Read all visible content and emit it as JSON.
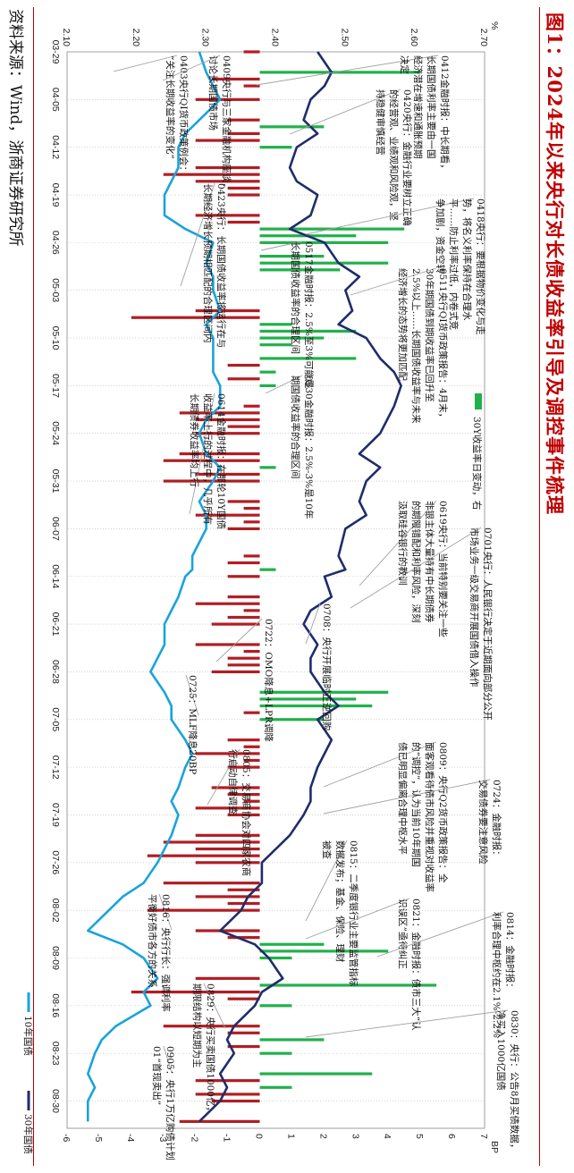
{
  "figure": {
    "title": "图1：2024年以来央行对长债收益率引导及调控事件梳理",
    "source": "资料来源：Wind，浙商证券研究所"
  },
  "chart_data": {
    "type": "bar+line",
    "left_axis": {
      "unit": "%",
      "min": 2.1,
      "max": 2.7,
      "ticks": [
        "2.10",
        "2.20",
        "2.30",
        "2.40",
        "2.50",
        "2.60",
        "2.70"
      ]
    },
    "right_axis": {
      "unit": "BP",
      "min": -6,
      "max": 7,
      "ticks": [
        "-6",
        "-5",
        "-4",
        "-3",
        "-2",
        "-1",
        "0",
        "1",
        "2",
        "3",
        "4",
        "5",
        "6",
        "7"
      ]
    },
    "x_ticks": [
      "03-29",
      "04-05",
      "04-12",
      "04-19",
      "04-26",
      "05-03",
      "05-10",
      "05-17",
      "05-24",
      "05-31",
      "06-07",
      "06-14",
      "06-21",
      "06-28",
      "07-05",
      "07-12",
      "07-19",
      "07-26",
      "08-02",
      "08-09",
      "08-16",
      "08-23",
      "08-30"
    ],
    "legend": [
      {
        "name": "10年国债",
        "type": "line",
        "color": "#1aa3dc"
      },
      {
        "name": "30年国债",
        "type": "line",
        "color": "#1f2d6b"
      },
      {
        "name": "30Y收益率日变动，右",
        "type": "bar",
        "color": "#22b04b"
      }
    ],
    "bar_colors": {
      "up": "#22b04b",
      "down": "#b01e23"
    },
    "annotation_line_color": "#a0a0a0",
    "series_10y": [
      {
        "x": "03-29",
        "y": 2.29
      },
      {
        "x": "04-01",
        "y": 2.3
      },
      {
        "x": "04-03",
        "y": 2.31
      },
      {
        "x": "04-05",
        "y": 2.32
      },
      {
        "x": "04-08",
        "y": 2.29
      },
      {
        "x": "04-10",
        "y": 2.27
      },
      {
        "x": "04-12",
        "y": 2.26
      },
      {
        "x": "04-15",
        "y": 2.26
      },
      {
        "x": "04-17",
        "y": 2.25
      },
      {
        "x": "04-19",
        "y": 2.24
      },
      {
        "x": "04-22",
        "y": 2.24
      },
      {
        "x": "04-24",
        "y": 2.27
      },
      {
        "x": "04-26",
        "y": 2.31
      },
      {
        "x": "04-29",
        "y": 2.3
      },
      {
        "x": "05-01",
        "y": 2.31
      },
      {
        "x": "05-03",
        "y": 2.31
      },
      {
        "x": "05-06",
        "y": 2.32
      },
      {
        "x": "05-08",
        "y": 2.3
      },
      {
        "x": "05-10",
        "y": 2.31
      },
      {
        "x": "05-13",
        "y": 2.31
      },
      {
        "x": "05-15",
        "y": 2.31
      },
      {
        "x": "05-17",
        "y": 2.32
      },
      {
        "x": "05-20",
        "y": 2.32
      },
      {
        "x": "05-22",
        "y": 2.3
      },
      {
        "x": "05-24",
        "y": 2.29
      },
      {
        "x": "05-27",
        "y": 2.3
      },
      {
        "x": "05-29",
        "y": 2.32
      },
      {
        "x": "05-31",
        "y": 2.31
      },
      {
        "x": "06-03",
        "y": 2.29
      },
      {
        "x": "06-05",
        "y": 2.3
      },
      {
        "x": "06-07",
        "y": 2.3
      },
      {
        "x": "06-11",
        "y": 2.28
      },
      {
        "x": "06-13",
        "y": 2.28
      },
      {
        "x": "06-14",
        "y": 2.27
      },
      {
        "x": "06-17",
        "y": 2.26
      },
      {
        "x": "06-19",
        "y": 2.25
      },
      {
        "x": "06-21",
        "y": 2.24
      },
      {
        "x": "06-24",
        "y": 2.24
      },
      {
        "x": "06-26",
        "y": 2.23
      },
      {
        "x": "06-28",
        "y": 2.22
      },
      {
        "x": "07-01",
        "y": 2.24
      },
      {
        "x": "07-03",
        "y": 2.25
      },
      {
        "x": "07-05",
        "y": 2.25
      },
      {
        "x": "07-08",
        "y": 2.27
      },
      {
        "x": "07-10",
        "y": 2.28
      },
      {
        "x": "07-12",
        "y": 2.27
      },
      {
        "x": "07-15",
        "y": 2.26
      },
      {
        "x": "07-17",
        "y": 2.25
      },
      {
        "x": "07-19",
        "y": 2.26
      },
      {
        "x": "07-22",
        "y": 2.25
      },
      {
        "x": "07-24",
        "y": 2.24
      },
      {
        "x": "07-26",
        "y": 2.23
      },
      {
        "x": "07-29",
        "y": 2.21
      },
      {
        "x": "07-31",
        "y": 2.18
      },
      {
        "x": "08-02",
        "y": 2.16
      },
      {
        "x": "08-05",
        "y": 2.13
      },
      {
        "x": "08-07",
        "y": 2.18
      },
      {
        "x": "08-09",
        "y": 2.21
      },
      {
        "x": "08-12",
        "y": 2.23
      },
      {
        "x": "08-14",
        "y": 2.21
      },
      {
        "x": "08-16",
        "y": 2.22
      },
      {
        "x": "08-19",
        "y": 2.17
      },
      {
        "x": "08-21",
        "y": 2.15
      },
      {
        "x": "08-23",
        "y": 2.14
      },
      {
        "x": "08-26",
        "y": 2.13
      },
      {
        "x": "08-28",
        "y": 2.14
      },
      {
        "x": "08-30",
        "y": 2.13
      },
      {
        "x": "09-02",
        "y": 2.13
      }
    ],
    "series_30y": [
      {
        "x": "03-29",
        "y": 2.46
      },
      {
        "x": "04-01",
        "y": 2.48
      },
      {
        "x": "04-03",
        "y": 2.47
      },
      {
        "x": "04-05",
        "y": 2.45
      },
      {
        "x": "04-08",
        "y": 2.44
      },
      {
        "x": "04-10",
        "y": 2.46
      },
      {
        "x": "04-12",
        "y": 2.43
      },
      {
        "x": "04-15",
        "y": 2.42
      },
      {
        "x": "04-17",
        "y": 2.43
      },
      {
        "x": "04-19",
        "y": 2.46
      },
      {
        "x": "04-22",
        "y": 2.45
      },
      {
        "x": "04-24",
        "y": 2.42
      },
      {
        "x": "04-26",
        "y": 2.47
      },
      {
        "x": "04-29",
        "y": 2.49
      },
      {
        "x": "05-01",
        "y": 2.52
      },
      {
        "x": "05-03",
        "y": 2.5
      },
      {
        "x": "05-06",
        "y": 2.51
      },
      {
        "x": "05-08",
        "y": 2.49
      },
      {
        "x": "05-10",
        "y": 2.53
      },
      {
        "x": "05-13",
        "y": 2.55
      },
      {
        "x": "05-15",
        "y": 2.57
      },
      {
        "x": "05-17",
        "y": 2.58
      },
      {
        "x": "05-20",
        "y": 2.57
      },
      {
        "x": "05-22",
        "y": 2.56
      },
      {
        "x": "05-24",
        "y": 2.55
      },
      {
        "x": "05-27",
        "y": 2.52
      },
      {
        "x": "05-29",
        "y": 2.55
      },
      {
        "x": "05-31",
        "y": 2.53
      },
      {
        "x": "06-03",
        "y": 2.52
      },
      {
        "x": "06-05",
        "y": 2.53
      },
      {
        "x": "06-07",
        "y": 2.5
      },
      {
        "x": "06-11",
        "y": 2.49
      },
      {
        "x": "06-13",
        "y": 2.5
      },
      {
        "x": "06-14",
        "y": 2.47
      },
      {
        "x": "06-17",
        "y": 2.48
      },
      {
        "x": "06-19",
        "y": 2.45
      },
      {
        "x": "06-21",
        "y": 2.44
      },
      {
        "x": "06-24",
        "y": 2.46
      },
      {
        "x": "06-26",
        "y": 2.45
      },
      {
        "x": "06-28",
        "y": 2.45
      },
      {
        "x": "07-01",
        "y": 2.47
      },
      {
        "x": "07-03",
        "y": 2.49
      },
      {
        "x": "07-05",
        "y": 2.46
      },
      {
        "x": "07-08",
        "y": 2.48
      },
      {
        "x": "07-10",
        "y": 2.47
      },
      {
        "x": "07-12",
        "y": 2.46
      },
      {
        "x": "07-15",
        "y": 2.45
      },
      {
        "x": "07-17",
        "y": 2.45
      },
      {
        "x": "07-19",
        "y": 2.44
      },
      {
        "x": "07-22",
        "y": 2.42
      },
      {
        "x": "07-24",
        "y": 2.4
      },
      {
        "x": "07-26",
        "y": 2.38
      },
      {
        "x": "07-29",
        "y": 2.38
      },
      {
        "x": "07-31",
        "y": 2.36
      },
      {
        "x": "08-02",
        "y": 2.35
      },
      {
        "x": "08-05",
        "y": 2.32
      },
      {
        "x": "08-07",
        "y": 2.37
      },
      {
        "x": "08-09",
        "y": 2.39
      },
      {
        "x": "08-12",
        "y": 2.41
      },
      {
        "x": "08-14",
        "y": 2.38
      },
      {
        "x": "08-16",
        "y": 2.37
      },
      {
        "x": "08-19",
        "y": 2.34
      },
      {
        "x": "08-21",
        "y": 2.33
      },
      {
        "x": "08-23",
        "y": 2.34
      },
      {
        "x": "08-26",
        "y": 2.32
      },
      {
        "x": "08-28",
        "y": 2.33
      },
      {
        "x": "08-30",
        "y": 2.32
      },
      {
        "x": "09-02",
        "y": 2.29
      }
    ],
    "bars_30y_daily_change_bp": [
      {
        "x": "03-29",
        "v": -0.5
      },
      {
        "x": "04-01",
        "v": 5.0
      },
      {
        "x": "04-02",
        "v": -1.5
      },
      {
        "x": "04-03",
        "v": -0.5
      },
      {
        "x": "04-05",
        "v": -2.0
      },
      {
        "x": "04-08",
        "v": -1.0
      },
      {
        "x": "04-09",
        "v": 2.0
      },
      {
        "x": "04-10",
        "v": -1.0
      },
      {
        "x": "04-11",
        "v": -2.0
      },
      {
        "x": "04-12",
        "v": 1.0
      },
      {
        "x": "04-15",
        "v": -2.0
      },
      {
        "x": "04-16",
        "v": -3.0
      },
      {
        "x": "04-17",
        "v": -2.0
      },
      {
        "x": "04-18",
        "v": -1.0
      },
      {
        "x": "04-19",
        "v": -1.0
      },
      {
        "x": "04-22",
        "v": -2.0
      },
      {
        "x": "04-23",
        "v": -1.0
      },
      {
        "x": "04-24",
        "v": 4.5
      },
      {
        "x": "04-25",
        "v": 3.0
      },
      {
        "x": "04-26",
        "v": 4.0
      },
      {
        "x": "04-28",
        "v": 2.0
      },
      {
        "x": "04-29",
        "v": 4.0
      },
      {
        "x": "04-30",
        "v": 2.5
      },
      {
        "x": "05-06",
        "v": -2.0
      },
      {
        "x": "05-07",
        "v": -4.0
      },
      {
        "x": "05-08",
        "v": 1.0
      },
      {
        "x": "05-09",
        "v": 3.0
      },
      {
        "x": "05-10",
        "v": 2.0
      },
      {
        "x": "05-11",
        "v": 1.0
      },
      {
        "x": "05-13",
        "v": 3.0
      },
      {
        "x": "05-14",
        "v": -1.0
      },
      {
        "x": "05-15",
        "v": 0.5
      },
      {
        "x": "05-16",
        "v": -1.0
      },
      {
        "x": "05-17",
        "v": 0.5
      },
      {
        "x": "05-20",
        "v": -0.5
      },
      {
        "x": "05-21",
        "v": -2.5
      },
      {
        "x": "05-22",
        "v": -2.0
      },
      {
        "x": "05-23",
        "v": -1.0
      },
      {
        "x": "05-24",
        "v": -2.0
      },
      {
        "x": "05-27",
        "v": -2.5
      },
      {
        "x": "05-28",
        "v": -3.0
      },
      {
        "x": "05-29",
        "v": 0.5
      },
      {
        "x": "05-30",
        "v": -2.0
      },
      {
        "x": "05-31",
        "v": -3.0
      },
      {
        "x": "06-03",
        "v": -1.0
      },
      {
        "x": "06-04",
        "v": -0.5
      },
      {
        "x": "06-05",
        "v": -2.0
      },
      {
        "x": "06-06",
        "v": -0.5
      },
      {
        "x": "06-07",
        "v": -1.0
      },
      {
        "x": "06-11",
        "v": -0.5
      },
      {
        "x": "06-12",
        "v": -1.0
      },
      {
        "x": "06-13",
        "v": 0.5
      },
      {
        "x": "06-14",
        "v": -1.0
      },
      {
        "x": "06-17",
        "v": -1.0
      },
      {
        "x": "06-18",
        "v": -2.0
      },
      {
        "x": "06-19",
        "v": -0.5
      },
      {
        "x": "06-20",
        "v": -1.0
      },
      {
        "x": "06-21",
        "v": -1.5
      },
      {
        "x": "06-24",
        "v": -2.0
      },
      {
        "x": "06-25",
        "v": -0.5
      },
      {
        "x": "06-26",
        "v": -1.0
      },
      {
        "x": "06-27",
        "v": -1.0
      },
      {
        "x": "06-28",
        "v": -1.5
      },
      {
        "x": "07-01",
        "v": 4.0
      },
      {
        "x": "07-02",
        "v": 3.0
      },
      {
        "x": "07-03",
        "v": 3.5
      },
      {
        "x": "07-04",
        "v": -0.5
      },
      {
        "x": "07-05",
        "v": 2.0
      },
      {
        "x": "07-08",
        "v": -1.0
      },
      {
        "x": "07-09",
        "v": -0.5
      },
      {
        "x": "07-10",
        "v": -2.0
      },
      {
        "x": "07-11",
        "v": -0.5
      },
      {
        "x": "07-12",
        "v": -1.0
      },
      {
        "x": "07-15",
        "v": -1.5
      },
      {
        "x": "07-16",
        "v": -1.0
      },
      {
        "x": "07-17",
        "v": -0.5
      },
      {
        "x": "07-18",
        "v": -2.0
      },
      {
        "x": "07-19",
        "v": -1.0
      },
      {
        "x": "07-22",
        "v": -2.0
      },
      {
        "x": "07-23",
        "v": -3.0
      },
      {
        "x": "07-24",
        "v": -2.0
      },
      {
        "x": "07-25",
        "v": -3.5
      },
      {
        "x": "07-26",
        "v": -2.0
      },
      {
        "x": "07-29",
        "v": -3.0
      },
      {
        "x": "07-30",
        "v": -1.0
      },
      {
        "x": "07-31",
        "v": -2.0
      },
      {
        "x": "08-01",
        "v": -1.0
      },
      {
        "x": "08-02",
        "v": -3.5
      },
      {
        "x": "08-05",
        "v": -2.0
      },
      {
        "x": "08-06",
        "v": -1.0
      },
      {
        "x": "08-07",
        "v": 2.0
      },
      {
        "x": "08-08",
        "v": 4.0
      },
      {
        "x": "08-09",
        "v": 1.0
      },
      {
        "x": "08-12",
        "v": -2.0
      },
      {
        "x": "08-13",
        "v": 5.5
      },
      {
        "x": "08-14",
        "v": -4.0
      },
      {
        "x": "08-15",
        "v": -1.0
      },
      {
        "x": "08-16",
        "v": 1.0
      },
      {
        "x": "08-19",
        "v": -3.0
      },
      {
        "x": "08-20",
        "v": -1.0
      },
      {
        "x": "08-21",
        "v": 2.0
      },
      {
        "x": "08-22",
        "v": -1.0
      },
      {
        "x": "08-23",
        "v": 1.0
      },
      {
        "x": "08-26",
        "v": 3.5
      },
      {
        "x": "08-27",
        "v": -2.0
      },
      {
        "x": "08-28",
        "v": 1.0
      },
      {
        "x": "08-29",
        "v": -2.0
      },
      {
        "x": "08-30",
        "v": -1.5
      },
      {
        "x": "09-02",
        "v": -2.5
      }
    ],
    "annotations": [
      {
        "lines": [
          "0412金融时报：中长期看，",
          "长期国债利率主要由一国",
          "经济潜在增速和通胀预期",
          "决定"
        ]
      },
      {
        "lines": [
          "0420央行：金融行业要树立正确",
          "的经营观、业绩观和风险观，坚",
          "持稳健审慎经营"
        ]
      },
      {
        "lines": [
          "0403央行QI货币政策例会：",
          "“关注长期收益率的变化”"
        ]
      },
      {
        "lines": [
          "0409央行与三家金融机构座谈，",
          "讨论长期国债市场"
        ]
      },
      {
        "lines": [
          "0423央行：长期国债收益率将运行在与",
          "长期经济增长预期相匹配的合理区间内"
        ]
      },
      {
        "lines": [
          "0418央行：要根据物价变化与走",
          "势，将名义利率保持在合理水",
          "平……防止利率过低，内卷式竞",
          "争加剧，资金空转"
        ]
      },
      {
        "lines": [
          "0517金融时报：2.5%至3%可能是",
          "长期国债收益率的合理区间"
        ]
      },
      {
        "lines": [
          "0511央行QI货币政策报告：4月末，",
          "30年期国债到期收益率已回升至",
          "2.5%以上……长期国债收益率与未来",
          "经济增长的态势将更加匹配"
        ]
      },
      {
        "lines": [
          "0530金融时报：2.5%-3%是10年",
          "期国债收益率的合理区间"
        ]
      },
      {
        "lines": [
          "0614金融时报：在那轮10Y国债",
          "收益率上行的过程中，几乎所有",
          "长期债券收益率均上行"
        ]
      },
      {
        "lines": [
          "0701央行：人民银行决定于近期面向部分公开",
          "市场业务一级交易商开展国债借入操作"
        ]
      },
      {
        "lines": [
          "0619央行：当前特别要关注一些",
          "非银主体大量持有中长期债券",
          "的期限错配和利率风险，深刻",
          "汲取硅谷银行的教训"
        ]
      },
      {
        "lines": [
          "0722：OMO降息+LPR调降"
        ]
      },
      {
        "lines": [
          "0708：央行开展临时正逆回购"
        ]
      },
      {
        "lines": [
          "0725：MLF降息20BP"
        ]
      },
      {
        "lines": [
          "0724：金融时报：",
          "交易债券要注意风险"
        ]
      },
      {
        "lines": [
          "0809：央行Q2货币政策报告：全",
          "面客观看待债市风险并重视对收益率",
          "的“调控”，认为当前10年期国",
          "债已明显偏离合理中枢水平"
        ]
      },
      {
        "lines": [
          "0805：交易商协会对四家农商",
          "行启动自律调查"
        ]
      },
      {
        "lines": [
          "0815：二季度银行业主要监管指标",
          "数据发布；基金、保险、理财",
          "被查"
        ]
      },
      {
        "lines": [
          "0821：金融时报：债市三大“认",
          "识误区”亟待纠正"
        ]
      },
      {
        "lines": [
          "0814：金融时报：",
          "利率合理中枢约在2.1%-2.2%"
        ]
      },
      {
        "lines": [
          "0830：央行：公告8月买债数据，",
          "净买入1000亿国债"
        ]
      },
      {
        "lines": [
          "0829：央行买卖国债1000亿，",
          "期限结构以短期为主"
        ]
      },
      {
        "lines": [
          "0816：央行行长：强调利率",
          "平衡好债市各方的关系"
        ]
      },
      {
        "lines": [
          "0905：央行1万亿购债计划",
          "01“首现卖出”"
        ]
      }
    ]
  }
}
